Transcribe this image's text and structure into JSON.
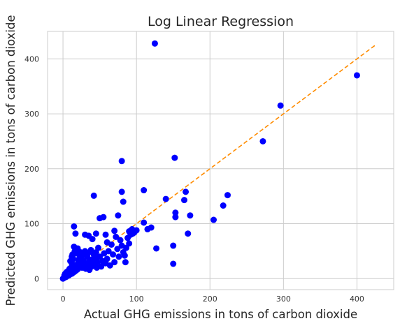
{
  "chart_data": {
    "type": "scatter",
    "title": "Log Linear Regression",
    "xlabel": "Actual GHG emissions in tons of carbon dioxide",
    "ylabel": "Predicted GHG emissions in tons of carbon dioxide",
    "xlim": [
      -21,
      450
    ],
    "ylim": [
      -20,
      450
    ],
    "xticks": [
      0,
      100,
      200,
      300,
      400
    ],
    "yticks": [
      0,
      100,
      200,
      300,
      400
    ],
    "grid": true,
    "colors": {
      "points": "#0000ff",
      "reference_line": "#ff8c00",
      "grid": "#cccccc",
      "frame": "#cccccc"
    },
    "reference_line": {
      "x": [
        0,
        425
      ],
      "y": [
        0,
        425
      ],
      "style": "dashed"
    },
    "series": [
      {
        "values": [
          [
            0,
            0
          ],
          [
            1,
            1
          ],
          [
            2,
            2
          ],
          [
            3,
            3
          ],
          [
            4,
            3
          ],
          [
            5,
            4
          ],
          [
            6,
            5
          ],
          [
            2,
            6
          ],
          [
            8,
            6
          ],
          [
            10,
            8
          ],
          [
            12,
            9
          ],
          [
            14,
            11
          ],
          [
            3,
            9
          ],
          [
            5,
            12
          ],
          [
            16,
            13
          ],
          [
            18,
            15
          ],
          [
            20,
            17
          ],
          [
            7,
            14
          ],
          [
            9,
            18
          ],
          [
            11,
            20
          ],
          [
            13,
            22
          ],
          [
            15,
            25
          ],
          [
            12,
            28
          ],
          [
            10,
            32
          ],
          [
            14,
            36
          ],
          [
            12,
            40
          ],
          [
            13,
            44
          ],
          [
            16,
            50
          ],
          [
            17,
            54
          ],
          [
            15,
            58
          ],
          [
            18,
            46
          ],
          [
            20,
            24
          ],
          [
            21,
            30
          ],
          [
            22,
            36
          ],
          [
            23,
            42
          ],
          [
            24,
            48
          ],
          [
            25,
            38
          ],
          [
            26,
            20
          ],
          [
            27,
            26
          ],
          [
            28,
            32
          ],
          [
            29,
            44
          ],
          [
            30,
            50
          ],
          [
            31,
            18
          ],
          [
            32,
            24
          ],
          [
            33,
            40
          ],
          [
            34,
            46
          ],
          [
            35,
            30
          ],
          [
            36,
            16
          ],
          [
            37,
            34
          ],
          [
            38,
            52
          ],
          [
            39,
            22
          ],
          [
            40,
            28
          ],
          [
            41,
            36
          ],
          [
            42,
            44
          ],
          [
            43,
            26
          ],
          [
            44,
            38
          ],
          [
            45,
            48
          ],
          [
            46,
            20
          ],
          [
            47,
            30
          ],
          [
            48,
            56
          ],
          [
            50,
            40
          ],
          [
            52,
            22
          ],
          [
            54,
            32
          ],
          [
            56,
            46
          ],
          [
            58,
            28
          ],
          [
            60,
            36
          ],
          [
            62,
            50
          ],
          [
            64,
            24
          ],
          [
            66,
            62
          ],
          [
            68,
            44
          ],
          [
            70,
            30
          ],
          [
            72,
            76
          ],
          [
            74,
            54
          ],
          [
            76,
            40
          ],
          [
            78,
            70
          ],
          [
            80,
            60
          ],
          [
            82,
            48
          ],
          [
            84,
            42
          ],
          [
            86,
            56
          ],
          [
            88,
            74
          ],
          [
            90,
            86
          ],
          [
            92,
            80
          ],
          [
            94,
            90
          ],
          [
            97,
            84
          ],
          [
            100,
            88
          ],
          [
            15,
            95
          ],
          [
            17,
            82
          ],
          [
            20,
            55
          ],
          [
            30,
            80
          ],
          [
            35,
            78
          ],
          [
            40,
            72
          ],
          [
            45,
            82
          ],
          [
            42,
            151
          ],
          [
            50,
            110
          ],
          [
            55,
            112
          ],
          [
            58,
            80
          ],
          [
            60,
            66
          ],
          [
            70,
            87
          ],
          [
            75,
            115
          ],
          [
            80,
            214
          ],
          [
            80,
            158
          ],
          [
            82,
            140
          ],
          [
            85,
            30
          ],
          [
            90,
            64
          ],
          [
            95,
            82
          ],
          [
            110,
            102
          ],
          [
            110,
            161
          ],
          [
            115,
            90
          ],
          [
            120,
            93
          ],
          [
            125,
            428
          ],
          [
            127,
            55
          ],
          [
            140,
            145
          ],
          [
            150,
            27
          ],
          [
            150,
            60
          ],
          [
            152,
            220
          ],
          [
            153,
            120
          ],
          [
            153,
            112
          ],
          [
            165,
            143
          ],
          [
            167,
            158
          ],
          [
            170,
            82
          ],
          [
            173,
            115
          ],
          [
            205,
            107
          ],
          [
            218,
            133
          ],
          [
            224,
            152
          ],
          [
            272,
            250
          ],
          [
            296,
            315
          ],
          [
            400,
            370
          ]
        ]
      }
    ]
  }
}
